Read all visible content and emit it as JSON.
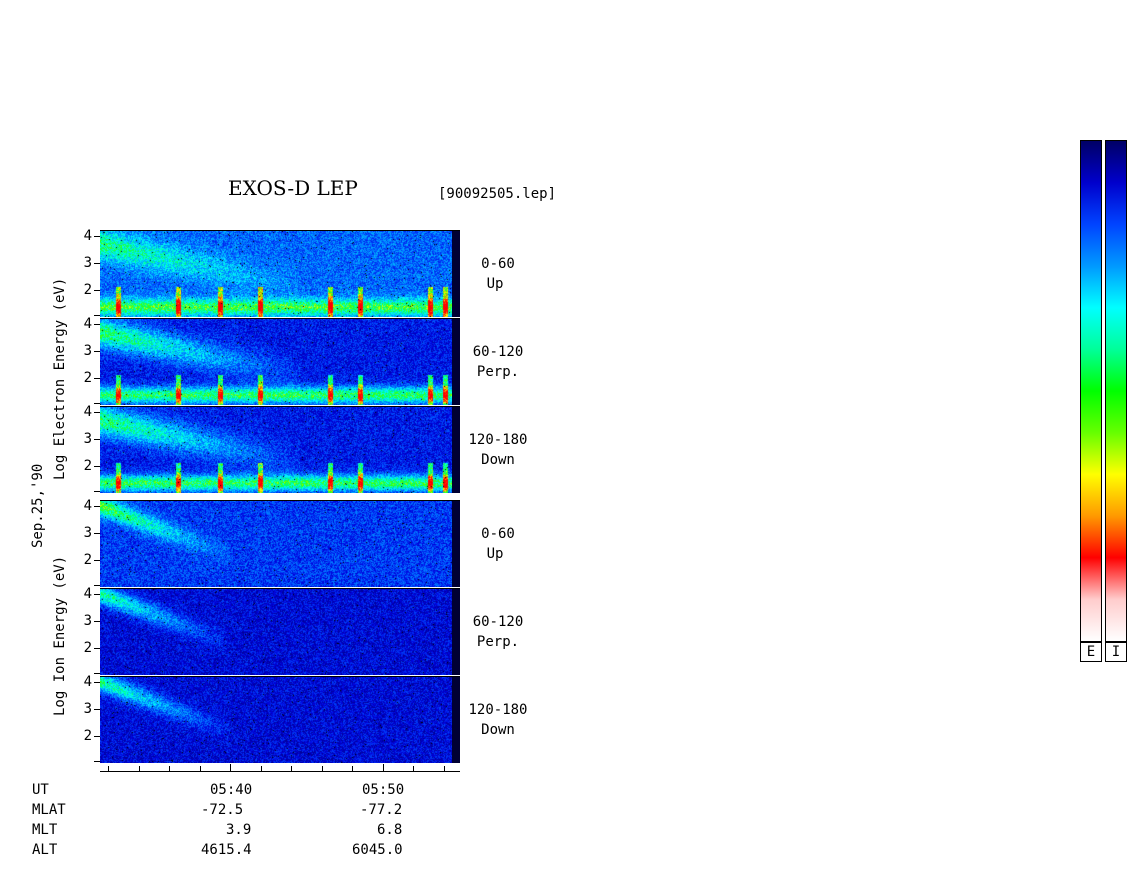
{
  "header": {
    "title": "EXOS-D LEP",
    "file": "[90092505.lep]"
  },
  "left_labels": {
    "electron": "Log Electron Energy (eV)",
    "date": "Sep.25,'90",
    "ion": "Log Ion Energy (eV)"
  },
  "panels": [
    {
      "group": "electron",
      "angle": "0-60",
      "dir": "Up"
    },
    {
      "group": "electron",
      "angle": "60-120",
      "dir": "Perp."
    },
    {
      "group": "electron",
      "angle": "120-180",
      "dir": "Down"
    },
    {
      "group": "ion",
      "angle": "0-60",
      "dir": "Up"
    },
    {
      "group": "ion",
      "angle": "60-120",
      "dir": "Perp."
    },
    {
      "group": "ion",
      "angle": "120-180",
      "dir": "Down"
    }
  ],
  "y_ticks": [
    "4",
    "3",
    "2"
  ],
  "colorbars": {
    "electron_label": "E",
    "ion_label": "I",
    "colors": [
      "#000066",
      "#0000cc",
      "#0044ff",
      "#0099ff",
      "#00ffff",
      "#00ff99",
      "#00ff00",
      "#66ff00",
      "#ffff00",
      "#ff9900",
      "#ff0000",
      "#ffcccc",
      "#ffffff"
    ]
  },
  "footer": {
    "row_labels": [
      "UT",
      "MLAT",
      "MLT",
      "ALT"
    ],
    "columns": [
      {
        "UT": "05:40",
        "MLAT": "-72.5",
        "MLT": "3.9",
        "ALT": "4615.4"
      },
      {
        "UT": "05:50",
        "MLAT": "-77.2",
        "MLT": "6.8",
        "ALT": "6045.0"
      }
    ]
  },
  "chart_data": {
    "type": "heatmap",
    "title": "EXOS-D LEP",
    "xlabel": "UT",
    "ylabel": "Log Energy (eV)",
    "y_range": [
      1,
      4
    ],
    "x_ticks": [
      "05:40",
      "05:50"
    ],
    "series": [
      {
        "name": "Electron 0-60 Up"
      },
      {
        "name": "Electron 60-120 Perp."
      },
      {
        "name": "Electron 120-180 Down"
      },
      {
        "name": "Ion 0-60 Up"
      },
      {
        "name": "Ion 60-120 Perp."
      },
      {
        "name": "Ion 120-180 Down"
      }
    ]
  }
}
